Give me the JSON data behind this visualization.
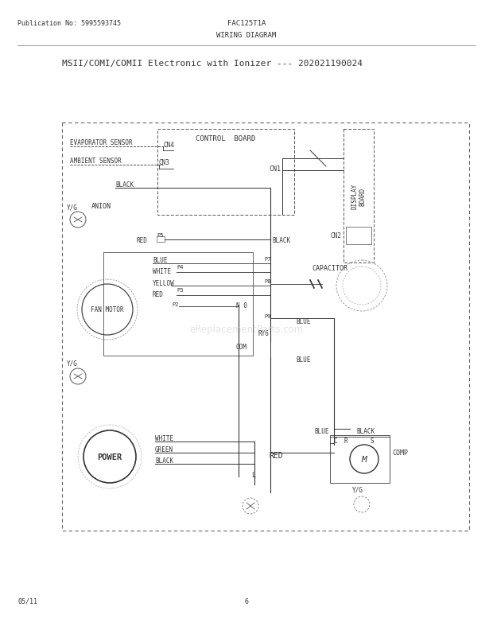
{
  "title_main": "MSII/COMI/COMII Electronic with Ionizer --- 202021190024",
  "header_left": "Publication No: 5995593745",
  "header_center": "FAC125T1A",
  "header_subtitle": "WIRING DIAGRAM",
  "footer_left": "05/11",
  "footer_center": "6",
  "bg_color": "#ffffff",
  "text_color": "#333333",
  "watermark": "eReplacementParts.com"
}
